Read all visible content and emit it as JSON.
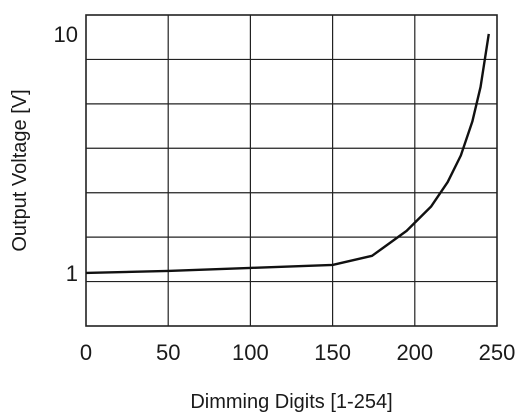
{
  "chart_data": {
    "type": "line",
    "xlabel": "Dimming Digits [1-254]",
    "ylabel": "Output Voltage [V]",
    "xlim": [
      0,
      250
    ],
    "ylim": [
      0.6,
      12
    ],
    "y_scale": "log",
    "grid": true,
    "x_ticks": [
      0,
      50,
      100,
      150,
      200,
      250
    ],
    "x_tick_labels": [
      "0",
      "50",
      "100",
      "150",
      "200",
      "250"
    ],
    "y_ticks": [
      1,
      10
    ],
    "y_tick_labels": [
      "1",
      "10"
    ],
    "series": [
      {
        "values": [
          {
            "x": 0,
            "y": 1.0
          },
          {
            "x": 50,
            "y": 1.02
          },
          {
            "x": 100,
            "y": 1.05
          },
          {
            "x": 150,
            "y": 1.08
          },
          {
            "x": 174,
            "y": 1.18
          },
          {
            "x": 195,
            "y": 1.5
          },
          {
            "x": 210,
            "y": 1.9
          },
          {
            "x": 220,
            "y": 2.4
          },
          {
            "x": 228,
            "y": 3.1
          },
          {
            "x": 235,
            "y": 4.3
          },
          {
            "x": 240,
            "y": 6.0
          },
          {
            "x": 245,
            "y": 10.0
          }
        ]
      }
    ]
  }
}
